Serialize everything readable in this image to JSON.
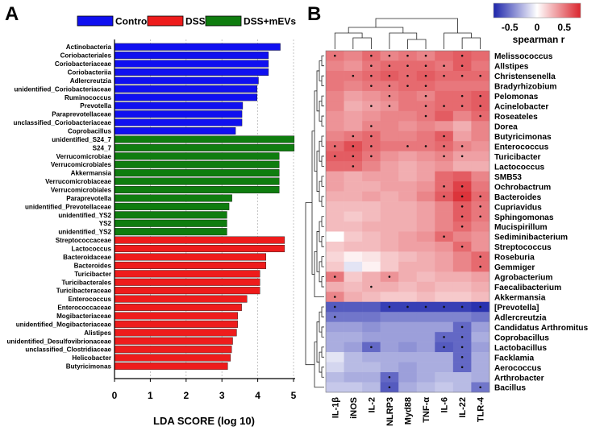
{
  "chart_data": [
    {
      "panel_label": "A",
      "type": "bar",
      "orientation": "horizontal",
      "xlabel": "LDA SCORE (log 10)",
      "xlim": [
        0,
        5
      ],
      "ticks": [
        "0",
        "1",
        "2",
        "3",
        "4",
        "5"
      ],
      "grid": true,
      "legend": [
        "Control",
        "DSS",
        "DSS+mEVs"
      ],
      "colors": {
        "Control": "#1010f0",
        "DSS": "#ee1c1c",
        "DSS+mEVs": "#0f7d0f"
      },
      "bars": [
        {
          "label": "Actinobacteria",
          "group": "Control",
          "value": 4.63
        },
        {
          "label": "Coriobacteriales",
          "group": "Control",
          "value": 4.3
        },
        {
          "label": "Coriobacteriaceae",
          "group": "Control",
          "value": 4.3
        },
        {
          "label": "Coriobacteriia",
          "group": "Control",
          "value": 4.3
        },
        {
          "label": "Adlercreutzia",
          "group": "Control",
          "value": 4.02
        },
        {
          "label": "unidentified_Coriobacteriaceae",
          "group": "Control",
          "value": 3.98
        },
        {
          "label": "Ruminococcus",
          "group": "Control",
          "value": 3.98
        },
        {
          "label": "Prevotella",
          "group": "Control",
          "value": 3.58
        },
        {
          "label": "Paraprevotellaceae",
          "group": "Control",
          "value": 3.56
        },
        {
          "label": "unclassified_Coriobacteriaceae",
          "group": "Control",
          "value": 3.56
        },
        {
          "label": "Coprobacillus",
          "group": "Control",
          "value": 3.38
        },
        {
          "label": "unidentified_S24_7",
          "group": "DSS+mEVs",
          "value": 5.02
        },
        {
          "label": "S24_7",
          "group": "DSS+mEVs",
          "value": 5.02
        },
        {
          "label": "Verrucomicrobiae",
          "group": "DSS+mEVs",
          "value": 4.6
        },
        {
          "label": "Verrucomicrobiales",
          "group": "DSS+mEVs",
          "value": 4.6
        },
        {
          "label": "Akkermansia",
          "group": "DSS+mEVs",
          "value": 4.6
        },
        {
          "label": "Verrucomicrobiaceae",
          "group": "DSS+mEVs",
          "value": 4.6
        },
        {
          "label": "Verrucomicrobiales",
          "group": "DSS+mEVs",
          "value": 4.6
        },
        {
          "label": "Paraprevotella",
          "group": "DSS+mEVs",
          "value": 3.28
        },
        {
          "label": "unidentified_Prevotellaceae",
          "group": "DSS+mEVs",
          "value": 3.2
        },
        {
          "label": "unidentified_YS2",
          "group": "DSS+mEVs",
          "value": 3.14
        },
        {
          "label": "YS2",
          "group": "DSS+mEVs",
          "value": 3.14
        },
        {
          "label": "unidentified_YS2",
          "group": "DSS+mEVs",
          "value": 3.14
        },
        {
          "label": "Streptococcaceae",
          "group": "DSS",
          "value": 4.75
        },
        {
          "label": "Lactococcus",
          "group": "DSS",
          "value": 4.75
        },
        {
          "label": "Bacteroidaceae",
          "group": "DSS",
          "value": 4.23
        },
        {
          "label": "Bacteroides",
          "group": "DSS",
          "value": 4.23
        },
        {
          "label": "Turicibacter",
          "group": "DSS",
          "value": 4.06
        },
        {
          "label": "Turicibacterales",
          "group": "DSS",
          "value": 4.06
        },
        {
          "label": "Turicibacteraceae",
          "group": "DSS",
          "value": 4.06
        },
        {
          "label": "Enterococcus",
          "group": "DSS",
          "value": 3.7
        },
        {
          "label": "Enterococcaceae",
          "group": "DSS",
          "value": 3.55
        },
        {
          "label": "Mogibacteriaceae",
          "group": "DSS",
          "value": 3.44
        },
        {
          "label": "unidentified_Mogibacteriaceae",
          "group": "DSS",
          "value": 3.44
        },
        {
          "label": "Alistipes",
          "group": "DSS",
          "value": 3.41
        },
        {
          "label": "unidentified_Desulfovibrionaceae",
          "group": "DSS",
          "value": 3.3
        },
        {
          "label": "unclassified_Clostridiaceae",
          "group": "DSS",
          "value": 3.27
        },
        {
          "label": "Helicobacter",
          "group": "DSS",
          "value": 3.24
        },
        {
          "label": "Butyricimonas",
          "group": "DSS",
          "value": 3.16
        }
      ]
    },
    {
      "panel_label": "B",
      "type": "heatmap",
      "colorbar": {
        "label": "spearman r",
        "ticks": [
          "-0.5",
          "0",
          "0.5"
        ],
        "range": [
          -0.8,
          0.8
        ]
      },
      "columns": [
        "IL-1β",
        "iNOS",
        "IL-2",
        "NLRP3",
        "Myd88",
        "TNF-α",
        "IL-6",
        "IL-22",
        "TLR-4"
      ],
      "rows": [
        "Melissococcus",
        "Allstipes",
        "Christensenella",
        "Bradyrhizobium",
        "Pelomonas",
        "Acinelobacter",
        "Roseateles",
        "Dorea",
        "Butyricimonas",
        "Enterococcus",
        "Turicibacter",
        "Lactococcus",
        "SMB53",
        "Ochrobactrum",
        "Bacteroides",
        "Cupriavidus",
        "Sphingomonas",
        "Mucispirillum",
        "Sediminibacterium",
        "Streptococcus",
        "Roseburia",
        "Gemmiger",
        "Agrobacterium",
        "Faecalibacterium",
        "Akkermansia",
        "[Prevotella]",
        "Adlercreutzia",
        "Candidatus Arthromitus",
        "Coprobacillus",
        "Lactobacillus",
        "Facklamia",
        "Aerococcus",
        "Arthrobacter",
        "Bacillus"
      ],
      "values": [
        [
          0.5,
          0.45,
          0.55,
          0.45,
          0.5,
          0.45,
          0.55,
          0.6,
          0.55
        ],
        [
          0.45,
          0.4,
          0.5,
          0.55,
          0.55,
          0.55,
          0.5,
          0.6,
          0.5
        ],
        [
          0.5,
          0.5,
          0.55,
          0.6,
          0.55,
          0.6,
          0.55,
          0.55,
          0.55
        ],
        [
          0.5,
          0.45,
          0.5,
          0.5,
          0.55,
          0.55,
          0.5,
          0.5,
          0.5
        ],
        [
          0.45,
          0.35,
          0.4,
          0.45,
          0.5,
          0.45,
          0.55,
          0.55,
          0.6
        ],
        [
          0.45,
          0.3,
          0.35,
          0.4,
          0.5,
          0.5,
          0.55,
          0.55,
          0.6
        ],
        [
          0.4,
          0.35,
          0.4,
          0.45,
          0.45,
          0.5,
          0.6,
          0.45,
          0.55
        ],
        [
          0.4,
          0.35,
          0.45,
          0.45,
          0.4,
          0.45,
          0.4,
          0.3,
          0.45
        ],
        [
          0.45,
          0.5,
          0.55,
          0.45,
          0.45,
          0.5,
          0.6,
          0.35,
          0.45
        ],
        [
          0.55,
          0.65,
          0.55,
          0.5,
          0.5,
          0.5,
          0.55,
          0.45,
          0.4
        ],
        [
          0.6,
          0.6,
          0.5,
          0.4,
          0.35,
          0.4,
          0.45,
          0.35,
          0.35
        ],
        [
          0.55,
          0.55,
          0.45,
          0.35,
          0.3,
          0.35,
          0.4,
          0.3,
          0.3
        ],
        [
          0.35,
          0.3,
          0.35,
          0.35,
          0.3,
          0.35,
          0.55,
          0.6,
          0.45
        ],
        [
          0.35,
          0.3,
          0.3,
          0.35,
          0.35,
          0.4,
          0.55,
          0.7,
          0.5
        ],
        [
          0.3,
          0.3,
          0.35,
          0.3,
          0.35,
          0.45,
          0.6,
          0.75,
          0.55
        ],
        [
          0.25,
          0.25,
          0.25,
          0.3,
          0.3,
          0.35,
          0.45,
          0.6,
          0.5
        ],
        [
          0.25,
          0.2,
          0.25,
          0.3,
          0.3,
          0.35,
          0.45,
          0.6,
          0.5
        ],
        [
          0.25,
          0.25,
          0.3,
          0.3,
          0.3,
          0.35,
          0.45,
          0.55,
          0.45
        ],
        [
          0.0,
          0.2,
          0.25,
          0.3,
          0.35,
          0.4,
          0.55,
          0.45,
          0.4
        ],
        [
          0.2,
          0.25,
          0.25,
          0.3,
          0.35,
          0.35,
          0.4,
          0.55,
          0.4
        ],
        [
          0.15,
          0.05,
          0.1,
          0.2,
          0.25,
          0.3,
          0.35,
          0.45,
          0.55
        ],
        [
          0.2,
          -0.1,
          0.05,
          0.2,
          0.3,
          0.3,
          0.35,
          0.45,
          0.55
        ],
        [
          0.5,
          0.2,
          0.3,
          0.4,
          0.3,
          0.25,
          0.3,
          0.3,
          0.35
        ],
        [
          0.3,
          0.25,
          0.3,
          0.3,
          0.25,
          0.3,
          0.25,
          0.25,
          0.3
        ],
        [
          0.45,
          0.3,
          0.25,
          0.2,
          0.2,
          0.25,
          0.2,
          0.2,
          0.25
        ],
        [
          -0.6,
          -0.6,
          -0.6,
          -0.7,
          -0.7,
          -0.7,
          -0.7,
          -0.7,
          -0.75
        ],
        [
          -0.5,
          -0.5,
          -0.5,
          -0.45,
          -0.45,
          -0.45,
          -0.45,
          -0.45,
          -0.5
        ],
        [
          -0.35,
          -0.35,
          -0.4,
          -0.35,
          -0.35,
          -0.35,
          -0.35,
          -0.55,
          -0.35
        ],
        [
          -0.3,
          -0.3,
          -0.35,
          -0.35,
          -0.35,
          -0.35,
          -0.55,
          -0.55,
          -0.3
        ],
        [
          -0.3,
          -0.35,
          -0.55,
          -0.35,
          -0.4,
          -0.35,
          -0.6,
          -0.55,
          -0.35
        ],
        [
          -0.1,
          -0.25,
          -0.3,
          -0.3,
          -0.3,
          -0.3,
          -0.3,
          -0.55,
          -0.3
        ],
        [
          -0.15,
          -0.25,
          -0.25,
          -0.3,
          -0.35,
          -0.3,
          -0.3,
          -0.55,
          -0.3
        ],
        [
          -0.25,
          -0.3,
          -0.3,
          -0.55,
          -0.35,
          -0.3,
          -0.25,
          -0.25,
          -0.3
        ],
        [
          -0.2,
          -0.2,
          -0.25,
          -0.6,
          -0.3,
          -0.25,
          -0.2,
          -0.25,
          -0.5
        ]
      ],
      "significant": [
        [
          0,
          2,
          3,
          4,
          5,
          7
        ],
        [
          2,
          3,
          4,
          5,
          6,
          7
        ],
        [
          1,
          2,
          3,
          4,
          5,
          6,
          7,
          8
        ],
        [
          2,
          3,
          4,
          5
        ],
        [
          3,
          5,
          7,
          8
        ],
        [
          2,
          3,
          5,
          6,
          7,
          8
        ],
        [
          5,
          8
        ],
        [
          2
        ],
        [
          1,
          2,
          6
        ],
        [
          0,
          1,
          2,
          4,
          5,
          6,
          7
        ],
        [
          0,
          1,
          2,
          6,
          7
        ],
        [
          1
        ],
        [],
        [
          6,
          7
        ],
        [
          6,
          7,
          8
        ],
        [
          7,
          8
        ],
        [
          7,
          8
        ],
        [
          7
        ],
        [
          6
        ],
        [
          7
        ],
        [
          8
        ],
        [
          8
        ],
        [
          0,
          3
        ],
        [
          2
        ],
        [
          0
        ],
        [
          0,
          3,
          4,
          5,
          6,
          7,
          8
        ],
        [
          0
        ],
        [
          7
        ],
        [
          6,
          7
        ],
        [
          2,
          6,
          7
        ],
        [
          7
        ],
        [
          7
        ],
        [
          3
        ],
        [
          3,
          8
        ]
      ]
    }
  ]
}
